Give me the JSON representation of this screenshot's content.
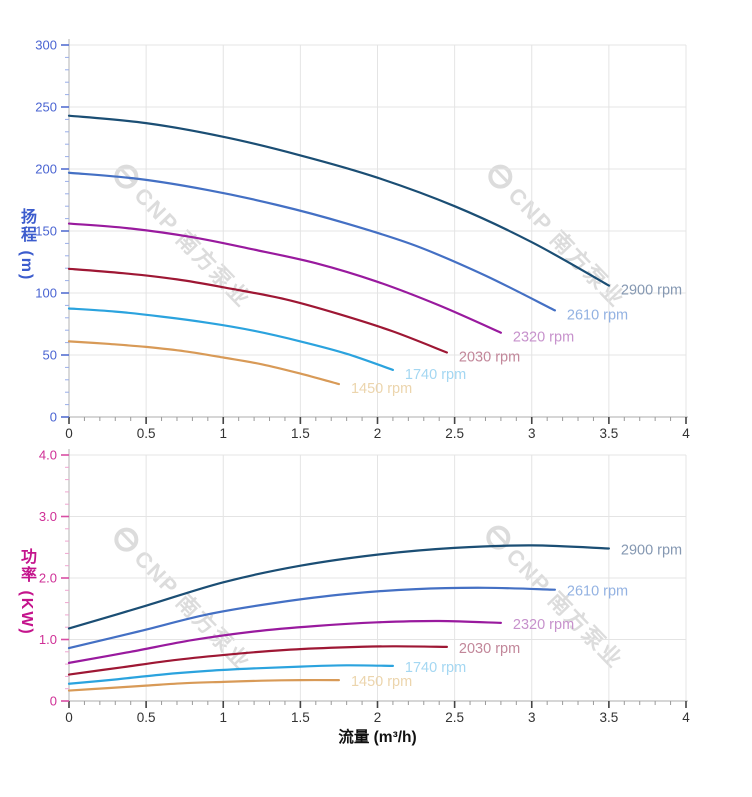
{
  "page": {
    "background": "#ffffff"
  },
  "watermark": {
    "text": "CNP 南方泵业",
    "color": "#dcdcdc"
  },
  "chart_data": [
    {
      "type": "line",
      "title": "",
      "xlabel": "",
      "ylabel": "扬程 (m)",
      "xlim": [
        0,
        4
      ],
      "ylim": [
        0,
        300
      ],
      "grid": true,
      "legend_position": "end-of-line-labels",
      "x_ticks": {
        "values": [
          0,
          0.5,
          1,
          1.5,
          2,
          2.5,
          3,
          3.5,
          4
        ],
        "labels": [
          "0",
          "0.5",
          "1",
          "1.5",
          "2",
          "2.5",
          "3",
          "3.5",
          "4"
        ],
        "minor_step": 0.1
      },
      "y_ticks": {
        "values": [
          0,
          50,
          100,
          150,
          200,
          250,
          300
        ],
        "labels": [
          "0",
          "50",
          "100",
          "150",
          "200",
          "250",
          "300"
        ],
        "minor_step": 10
      },
      "axis_style": {
        "title_color": "#3c5ccd",
        "label_color": "#4a64d2",
        "tick_major_color": "#5570d0",
        "tick_minor_color": "#9aaee8",
        "x_label_color": "#333333",
        "grid_color": "#e4e4e4",
        "axis_line_color": "#c9c9c9"
      },
      "series": [
        {
          "name": "2900 rpm",
          "color": "#1b4e74",
          "label_color": "#8598b2",
          "points": [
            [
              0,
              243
            ],
            [
              0.5,
              237
            ],
            [
              1,
              226
            ],
            [
              1.5,
              211
            ],
            [
              2,
              193
            ],
            [
              2.5,
              170
            ],
            [
              3,
              141
            ],
            [
              3.5,
              106
            ]
          ]
        },
        {
          "name": "2610 rpm",
          "color": "#4470c4",
          "label_color": "#93b2e2",
          "points": [
            [
              0,
              197
            ],
            [
              0.45,
              192
            ],
            [
              0.9,
              183
            ],
            [
              1.35,
              171
            ],
            [
              1.8,
              156
            ],
            [
              2.25,
              138
            ],
            [
              2.7,
              114
            ],
            [
              3.15,
              86
            ]
          ]
        },
        {
          "name": "2320 rpm",
          "color": "#991a9e",
          "label_color": "#c792cc",
          "points": [
            [
              0,
              156
            ],
            [
              0.4,
              152
            ],
            [
              0.8,
              145
            ],
            [
              1.2,
              135
            ],
            [
              1.6,
              124
            ],
            [
              2,
              109
            ],
            [
              2.4,
              90
            ],
            [
              2.8,
              68
            ]
          ]
        },
        {
          "name": "2030 rpm",
          "color": "#9e1734",
          "label_color": "#c2879a",
          "points": [
            [
              0,
              119.5
            ],
            [
              0.35,
              116
            ],
            [
              0.7,
              111
            ],
            [
              1.05,
              103.5
            ],
            [
              1.4,
              95
            ],
            [
              1.75,
              83
            ],
            [
              2.1,
              69
            ],
            [
              2.45,
              52
            ]
          ]
        },
        {
          "name": "1740 rpm",
          "color": "#2ba3de",
          "label_color": "#a4d7f2",
          "points": [
            [
              0,
              87.5
            ],
            [
              0.3,
              85
            ],
            [
              0.6,
              81
            ],
            [
              0.9,
              76
            ],
            [
              1.2,
              69.5
            ],
            [
              1.5,
              61
            ],
            [
              1.8,
              51
            ],
            [
              2.1,
              38
            ]
          ]
        },
        {
          "name": "1450 rpm",
          "color": "#d89a57",
          "label_color": "#ecd5ad",
          "points": [
            [
              0,
              61
            ],
            [
              0.25,
              59
            ],
            [
              0.5,
              56.5
            ],
            [
              0.75,
              53
            ],
            [
              1,
              48
            ],
            [
              1.25,
              42.5
            ],
            [
              1.5,
              35
            ],
            [
              1.75,
              26.5
            ]
          ]
        }
      ]
    },
    {
      "type": "line",
      "title": "",
      "xlabel": "流量 (m³/h)",
      "ylabel": "功率 (KW)",
      "xlim": [
        0,
        4
      ],
      "ylim": [
        0,
        4
      ],
      "grid": true,
      "legend_position": "end-of-line-labels",
      "x_ticks": {
        "values": [
          0,
          0.5,
          1,
          1.5,
          2,
          2.5,
          3,
          3.5,
          4
        ],
        "labels": [
          "0",
          "0.5",
          "1",
          "1.5",
          "2",
          "2.5",
          "3",
          "3.5",
          "4"
        ],
        "minor_step": 0.1
      },
      "y_ticks": {
        "values": [
          0,
          1,
          2,
          3,
          4
        ],
        "labels": [
          "0",
          "1.0",
          "2.0",
          "3.0",
          "4.0"
        ],
        "minor_step": 0.2
      },
      "axis_style": {
        "title_color": "#c4148c",
        "label_color": "#cf2f96",
        "tick_major_color": "#d84fa4",
        "tick_minor_color": "#eea6d0",
        "x_label_color": "#333333",
        "grid_color": "#e4e4e4",
        "axis_line_color": "#c9c9c9"
      },
      "series": [
        {
          "name": "2900 rpm",
          "color": "#1b4e74",
          "label_color": "#8598b2",
          "points": [
            [
              0,
              1.18
            ],
            [
              0.5,
              1.55
            ],
            [
              1,
              1.93
            ],
            [
              1.5,
              2.2
            ],
            [
              2,
              2.38
            ],
            [
              2.5,
              2.49
            ],
            [
              3,
              2.53
            ],
            [
              3.5,
              2.48
            ]
          ]
        },
        {
          "name": "2610 rpm",
          "color": "#4470c4",
          "label_color": "#93b2e2",
          "points": [
            [
              0,
              0.86
            ],
            [
              0.45,
              1.13
            ],
            [
              0.9,
              1.41
            ],
            [
              1.35,
              1.6
            ],
            [
              1.8,
              1.74
            ],
            [
              2.25,
              1.82
            ],
            [
              2.7,
              1.84
            ],
            [
              3.15,
              1.81
            ]
          ]
        },
        {
          "name": "2320 rpm",
          "color": "#991a9e",
          "label_color": "#c792cc",
          "points": [
            [
              0,
              0.62
            ],
            [
              0.4,
              0.8
            ],
            [
              0.8,
              0.99
            ],
            [
              1.2,
              1.13
            ],
            [
              1.6,
              1.22
            ],
            [
              2,
              1.28
            ],
            [
              2.4,
              1.3
            ],
            [
              2.8,
              1.27
            ]
          ]
        },
        {
          "name": "2030 rpm",
          "color": "#9e1734",
          "label_color": "#c2879a",
          "points": [
            [
              0,
              0.43
            ],
            [
              0.35,
              0.55
            ],
            [
              0.7,
              0.67
            ],
            [
              1.05,
              0.76
            ],
            [
              1.4,
              0.83
            ],
            [
              1.75,
              0.87
            ],
            [
              2.1,
              0.89
            ],
            [
              2.45,
              0.88
            ]
          ]
        },
        {
          "name": "1740 rpm",
          "color": "#2ba3de",
          "label_color": "#a4d7f2",
          "points": [
            [
              0,
              0.28
            ],
            [
              0.3,
              0.35
            ],
            [
              0.6,
              0.43
            ],
            [
              0.9,
              0.49
            ],
            [
              1.2,
              0.53
            ],
            [
              1.5,
              0.56
            ],
            [
              1.8,
              0.58
            ],
            [
              2.1,
              0.57
            ]
          ]
        },
        {
          "name": "1450 rpm",
          "color": "#d89a57",
          "label_color": "#ecd5ad",
          "points": [
            [
              0,
              0.17
            ],
            [
              0.25,
              0.21
            ],
            [
              0.5,
              0.25
            ],
            [
              0.75,
              0.29
            ],
            [
              1,
              0.31
            ],
            [
              1.25,
              0.33
            ],
            [
              1.5,
              0.34
            ],
            [
              1.75,
              0.34
            ]
          ]
        }
      ]
    }
  ]
}
